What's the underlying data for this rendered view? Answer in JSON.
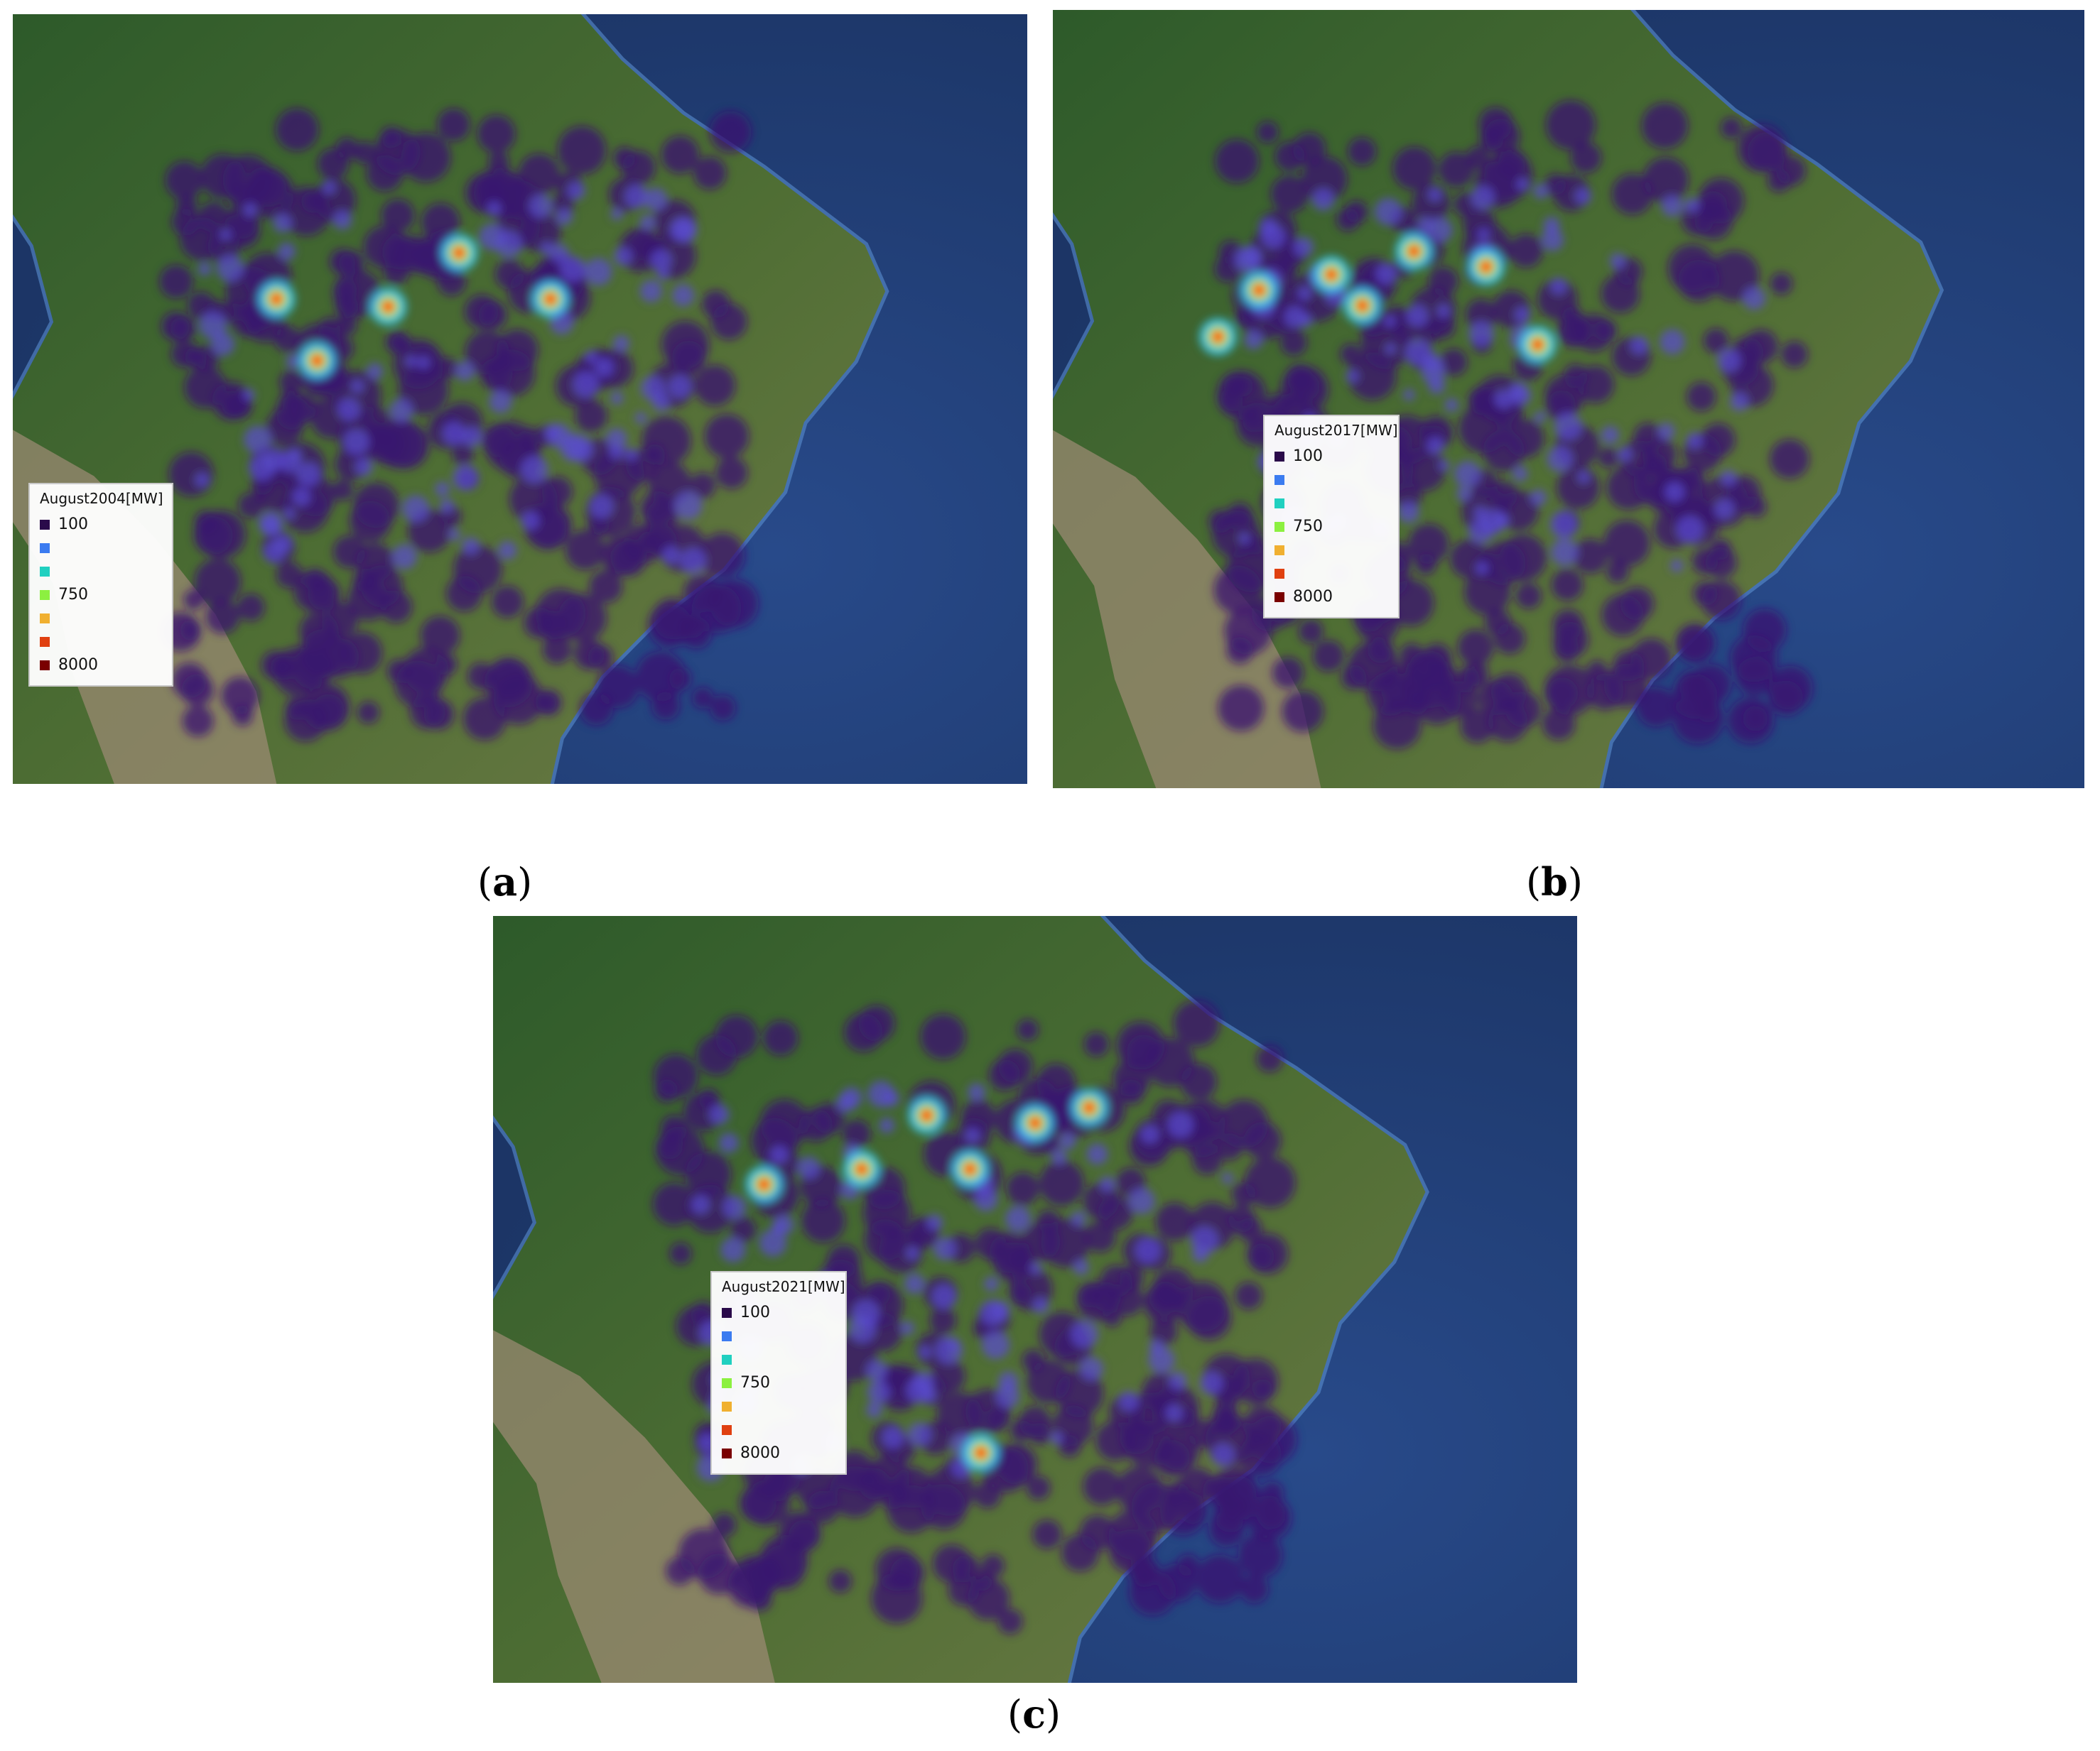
{
  "legend_colors": [
    "#2a0a4a",
    "#3b7bf0",
    "#20d0c0",
    "#8cf040",
    "#f0b030",
    "#e04010",
    "#7a0000"
  ],
  "panels": [
    {
      "caption": "a",
      "legend": {
        "title": "August2004[MW]",
        "labels": [
          "100",
          "",
          "",
          "750",
          "",
          "",
          "8000"
        ]
      }
    },
    {
      "caption": "b",
      "legend": {
        "title": "August2017[MW]",
        "labels": [
          "100",
          "",
          "",
          "750",
          "",
          "",
          "8000"
        ]
      }
    },
    {
      "caption": "c",
      "legend": {
        "title": "August2021[MW]",
        "labels": [
          "100",
          "",
          "",
          "750",
          "",
          "",
          "8000"
        ]
      }
    }
  ]
}
